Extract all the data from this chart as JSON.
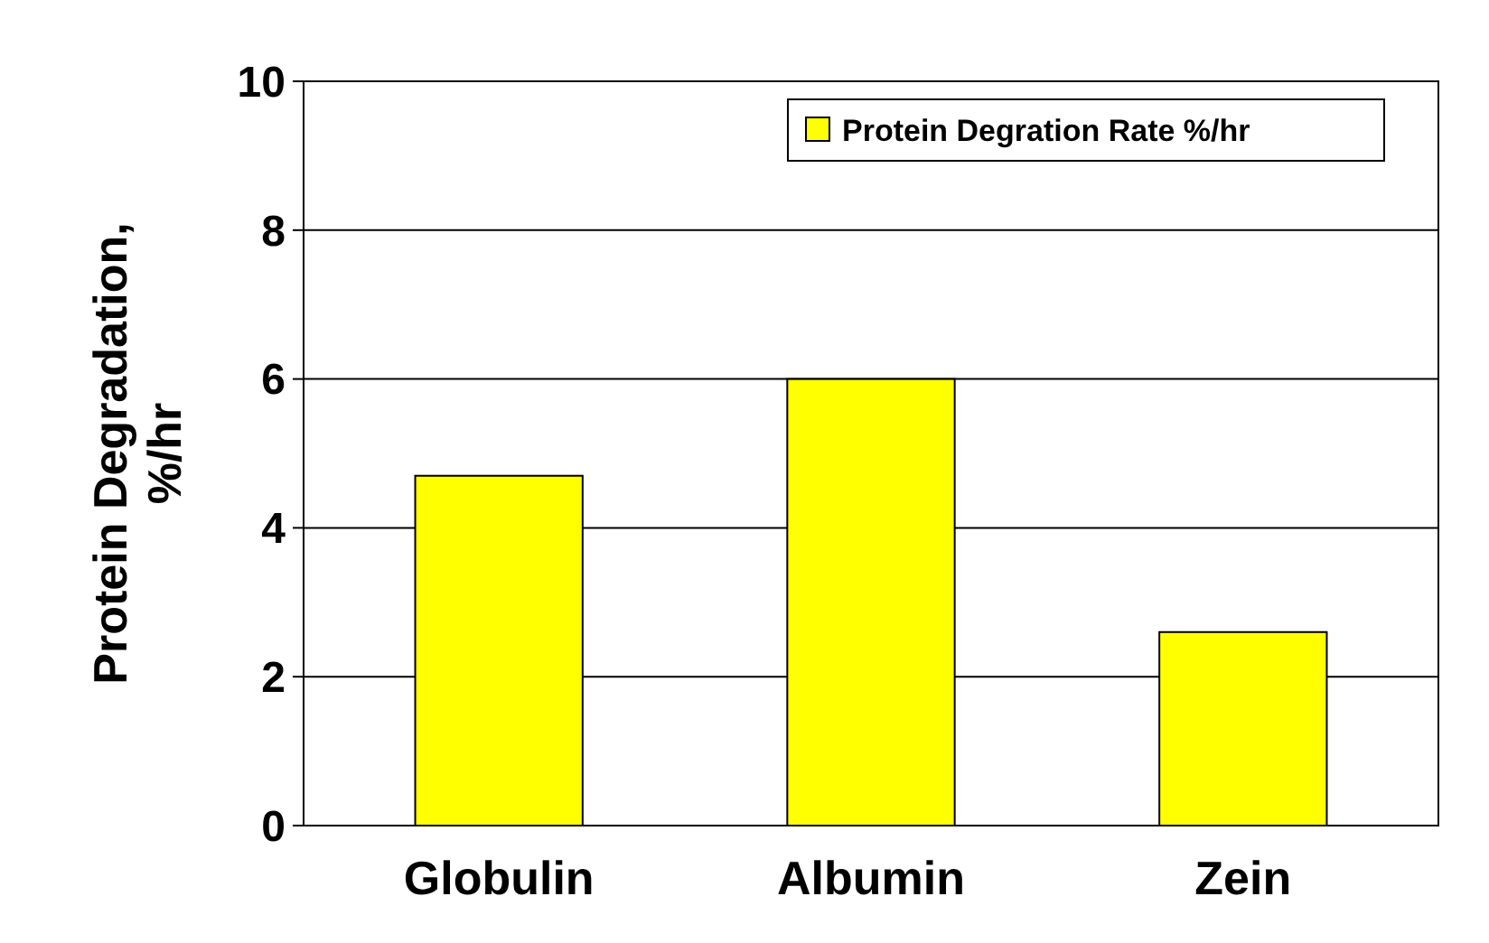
{
  "chart_data": {
    "type": "bar",
    "ylabel": "Protein Degradation, %/hr",
    "categories": [
      "Globulin",
      "Albumin",
      "Zein"
    ],
    "series": [
      {
        "name": "Protein Degration Rate %/hr",
        "color": "#ffff00",
        "values": [
          4.7,
          6.0,
          2.6
        ]
      }
    ],
    "ylim": [
      0,
      10
    ],
    "yticks": [
      0,
      2,
      4,
      6,
      8,
      10
    ],
    "grid": "y",
    "legend": "top right"
  }
}
